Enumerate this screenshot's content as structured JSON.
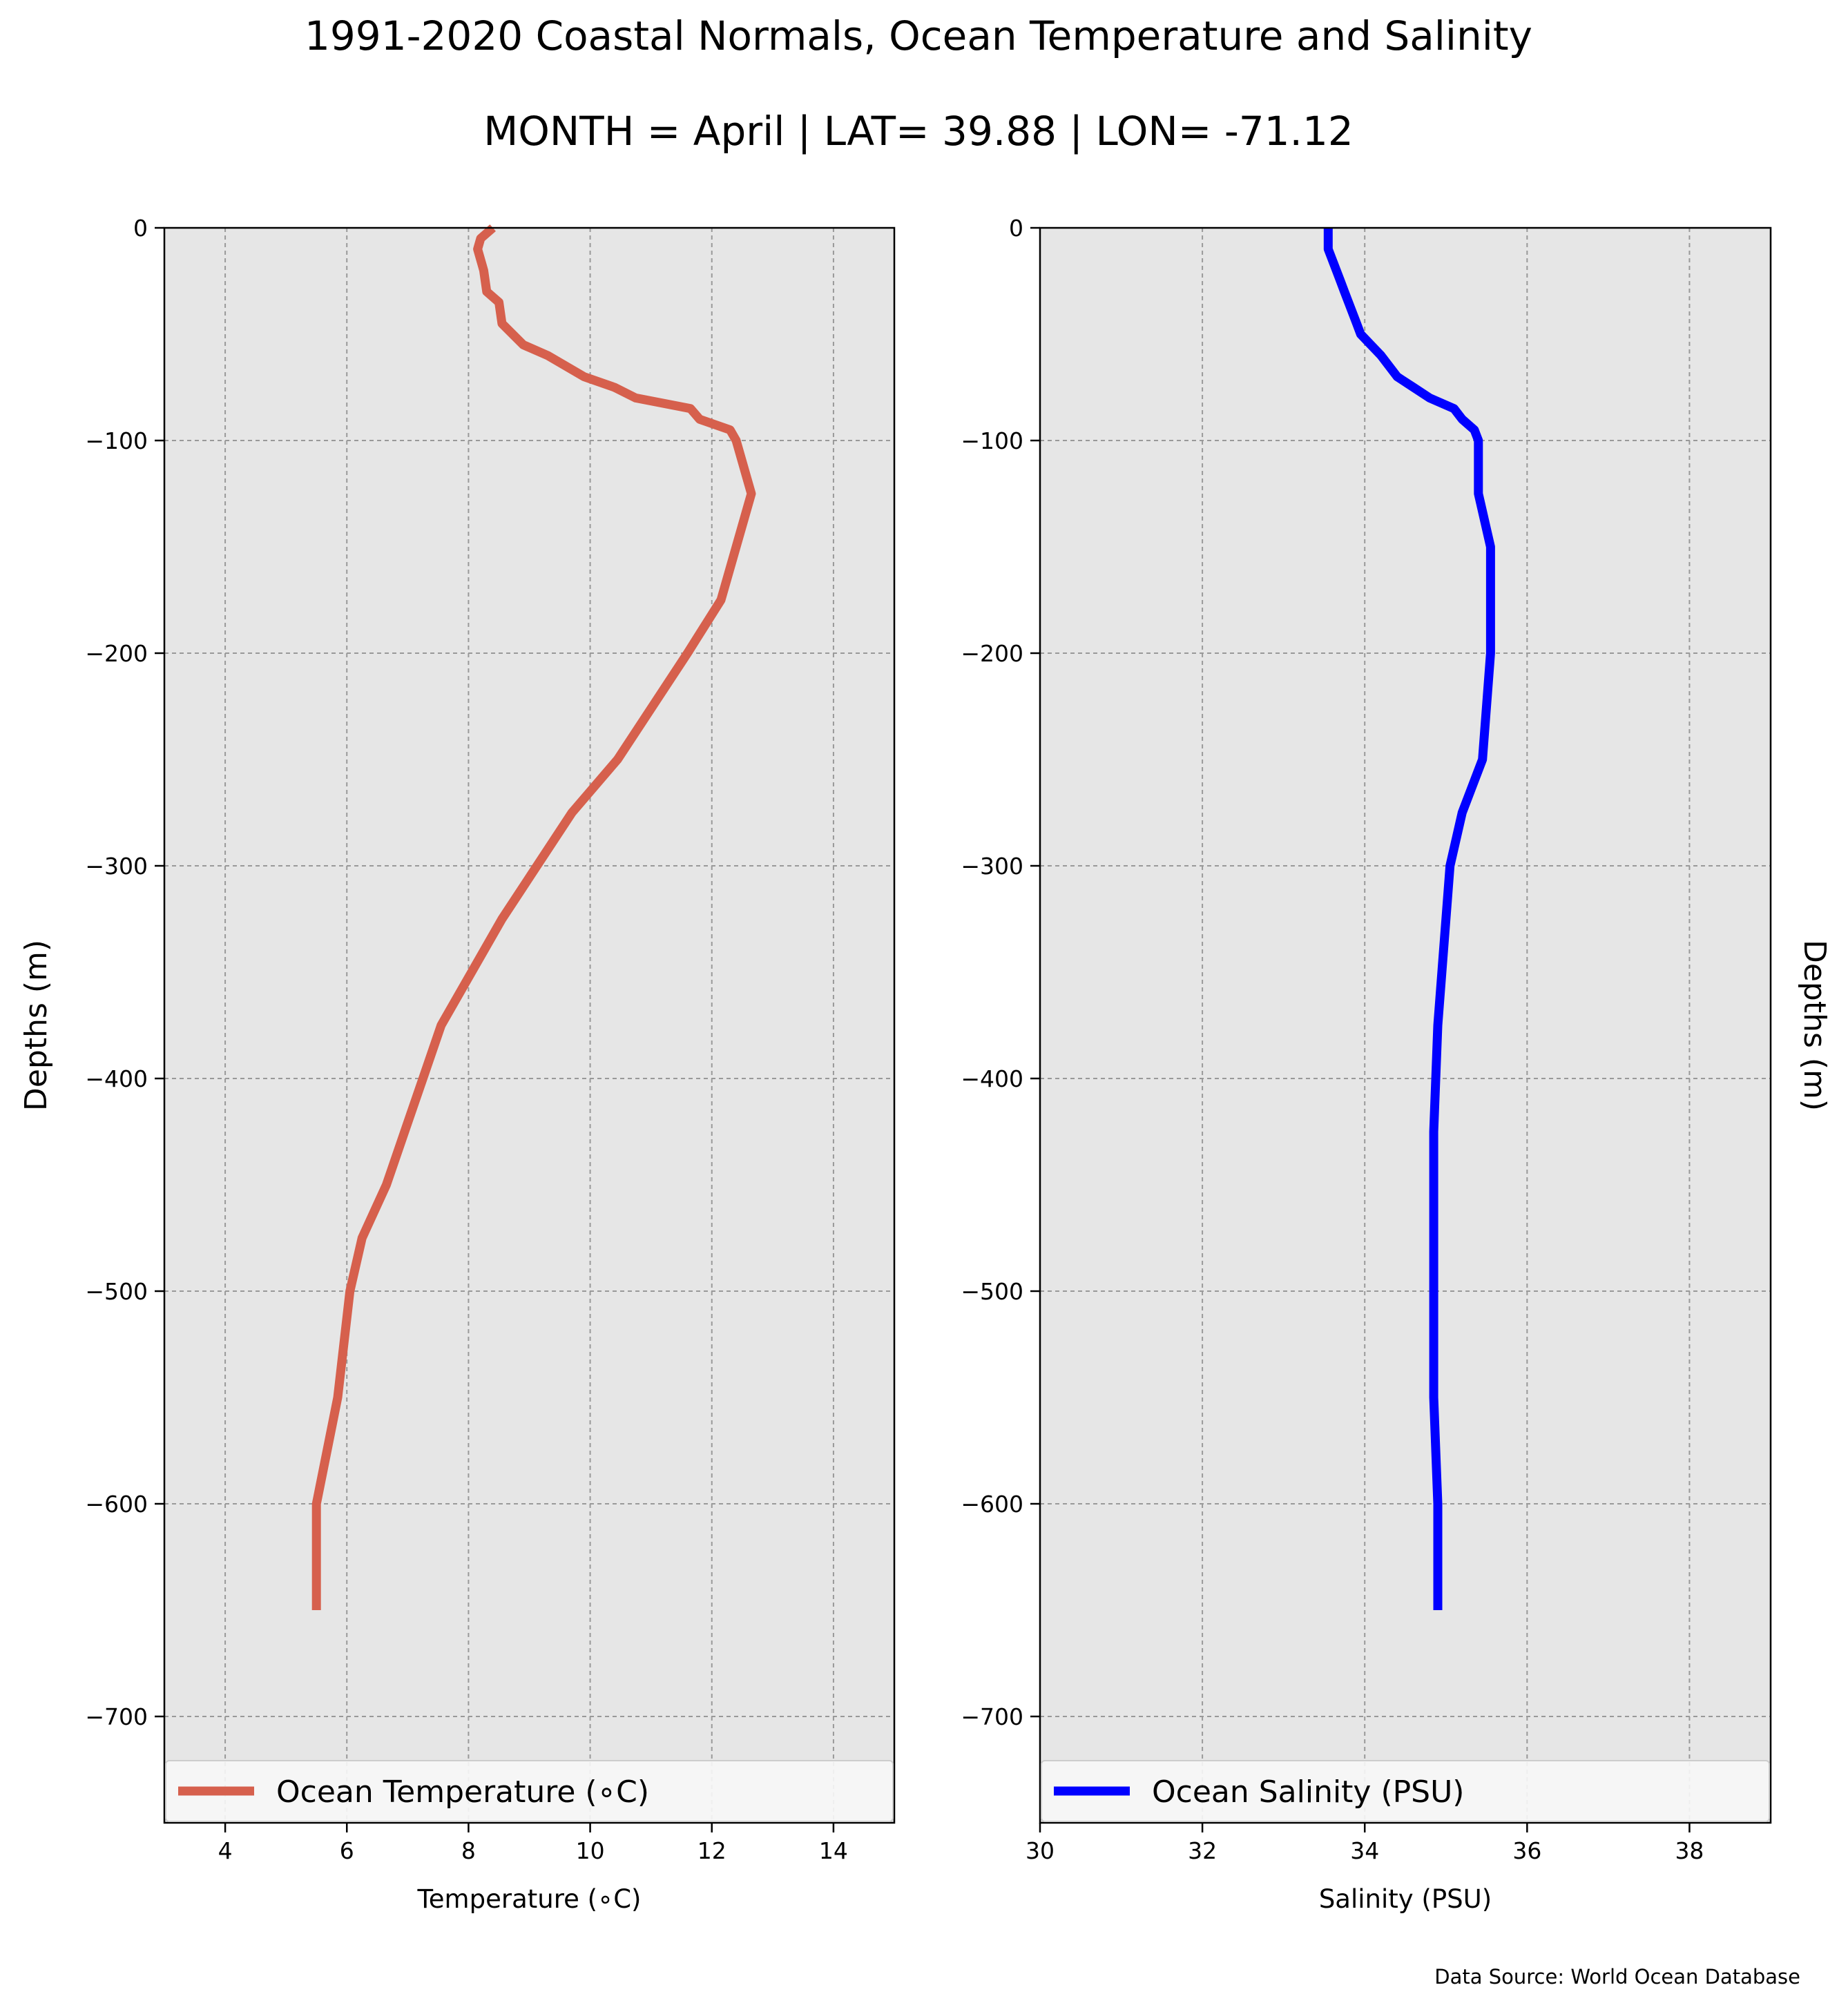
{
  "figure": {
    "title": "1991-2020 Coastal Normals, Ocean Temperature and Salinity",
    "subtitle": "MONTH = April | LAT= 39.88 | LON= -71.12",
    "source": "Data Source: World Ocean Database",
    "plot_background": "#e6e6e6",
    "grid_color": "#999999"
  },
  "chart_data": [
    {
      "type": "line",
      "xlabel": "Temperature (∘C)",
      "ylabel": "Depths (m)",
      "xlim": [
        3,
        15
      ],
      "ylim": [
        -750,
        0
      ],
      "xticks": [
        "4",
        "6",
        "8",
        "10",
        "12",
        "14"
      ],
      "yticks": [
        "0",
        "−100",
        "−200",
        "−300",
        "−400",
        "−500",
        "−600",
        "−700"
      ],
      "grid": true,
      "legend_position": "bottom",
      "series": [
        {
          "name": "Ocean Temperature (∘C)",
          "color": "#d6604d",
          "x": [
            8.4,
            8.2,
            8.15,
            8.25,
            8.3,
            8.5,
            8.55,
            8.9,
            9.3,
            9.9,
            10.4,
            10.75,
            11.65,
            11.8,
            12.3,
            12.4,
            12.65,
            12.4,
            12.15,
            11.6,
            10.45,
            9.7,
            8.55,
            7.55,
            7.25,
            6.95,
            6.65,
            6.25,
            6.05,
            5.85,
            5.5,
            5.5
          ],
          "y": [
            0,
            -5,
            -10,
            -20,
            -30,
            -35,
            -45,
            -55,
            -60,
            -70,
            -75,
            -80,
            -85,
            -90,
            -95,
            -100,
            -125,
            -150,
            -175,
            -200,
            -250,
            -275,
            -325,
            -375,
            -400,
            -425,
            -450,
            -475,
            -500,
            -550,
            -600,
            -650
          ]
        }
      ]
    },
    {
      "type": "line",
      "xlabel": "Salinity (PSU)",
      "ylabel": "Depths (m)",
      "xlim": [
        30,
        39
      ],
      "ylim": [
        -750,
        0
      ],
      "xticks": [
        "30",
        "32",
        "34",
        "36",
        "38"
      ],
      "yticks": [
        "0",
        "−100",
        "−200",
        "−300",
        "−400",
        "−500",
        "−600",
        "−700"
      ],
      "grid": true,
      "legend_position": "bottom",
      "series": [
        {
          "name": "Ocean Salinity (PSU)",
          "color": "#0000ff",
          "x": [
            33.55,
            33.55,
            33.55,
            33.6,
            33.65,
            33.7,
            33.75,
            33.8,
            33.85,
            33.9,
            33.95,
            34.2,
            34.4,
            34.6,
            34.8,
            35.1,
            35.2,
            35.35,
            35.4,
            35.4,
            35.55,
            35.55,
            35.45,
            35.2,
            35.05,
            34.95,
            34.9,
            34.85,
            34.85,
            34.85,
            34.9,
            34.9
          ],
          "y": [
            0,
            -5,
            -10,
            -15,
            -20,
            -25,
            -30,
            -35,
            -40,
            -45,
            -50,
            -60,
            -70,
            -75,
            -80,
            -85,
            -90,
            -95,
            -100,
            -125,
            -150,
            -200,
            -250,
            -275,
            -300,
            -350,
            -375,
            -425,
            -475,
            -550,
            -600,
            -650
          ]
        }
      ]
    }
  ]
}
